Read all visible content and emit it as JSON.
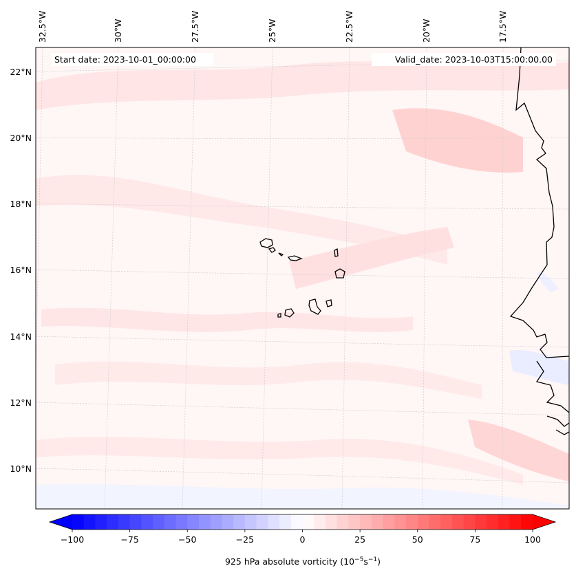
{
  "map": {
    "start_label": "Start date: 2023-10-01_00:00:00",
    "valid_label": "Valid_date: 2023-10-03T15:00:00.00",
    "lon_labels": [
      "32.5°W",
      "30°W",
      "27.5°W",
      "25°W",
      "22.5°W",
      "20°W",
      "17.5°W"
    ],
    "lat_labels": [
      "22°N",
      "20°N",
      "18°N",
      "16°N",
      "14°N",
      "12°N",
      "10°N"
    ],
    "gridlines": true
  },
  "colorbar": {
    "label": "925 hPa absolute vorticity (10",
    "label_exp1": "−5",
    "label_mid": "s",
    "label_exp2": "−1",
    "label_end": ")",
    "ticks": [
      "−100",
      "−75",
      "−50",
      "−25",
      "0",
      "25",
      "50",
      "75",
      "100"
    ],
    "min": -100,
    "max": 100,
    "colormap": "bwr",
    "extend": "both",
    "low_color": "#0000ff",
    "mid_color": "#ffffff",
    "high_color": "#ff0000"
  }
}
